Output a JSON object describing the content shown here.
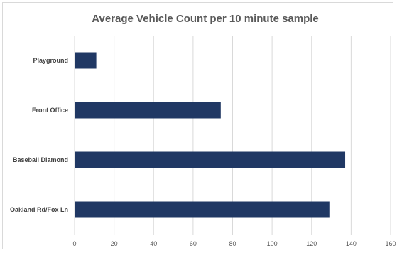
{
  "chart_data": {
    "type": "bar",
    "orientation": "horizontal",
    "title": "Average Vehicle Count per 10 minute sample",
    "xlabel": "",
    "ylabel": "",
    "categories": [
      "Playground",
      "Front Office",
      "Baseball Diamond",
      "Oakland Rd/Fox Ln"
    ],
    "values": [
      11,
      74,
      137,
      129
    ],
    "xlim": [
      0,
      160
    ],
    "xticks": [
      "0",
      "20",
      "40",
      "60",
      "80",
      "100",
      "120",
      "140",
      "160"
    ],
    "grid": true,
    "legend": "none",
    "bar_color": "#203864",
    "grid_color": "#d9d9d9"
  }
}
